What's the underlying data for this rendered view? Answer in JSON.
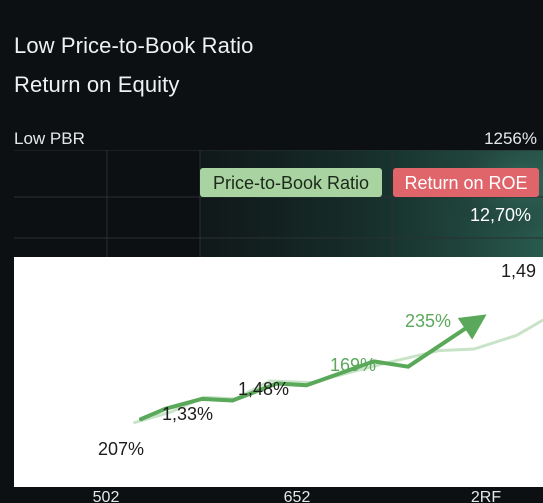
{
  "header": {
    "title_line1": "Low Price-to-Book Ratio",
    "title_line2": "Return on Equity",
    "left_label": "Low PBR",
    "right_label": "1256%"
  },
  "colors": {
    "background": "#0d1012",
    "green_line": "#5aa85a",
    "light_line": "#c9e3c9",
    "legend_green": "#a9d3a0",
    "legend_red": "#e0656a"
  },
  "chart_data": {
    "type": "line",
    "legend": [
      "Price-to-Book Ratio",
      "Return on ROE"
    ],
    "x_ticks": [
      "502",
      "652",
      "2RF"
    ],
    "series": [
      {
        "name": "Return on ROE",
        "values": [
          [
            0.24,
            0.295
          ],
          [
            0.286,
            0.34
          ],
          [
            0.355,
            0.383
          ],
          [
            0.413,
            0.376
          ],
          [
            0.497,
            0.45
          ],
          [
            0.553,
            0.442
          ],
          [
            0.68,
            0.546
          ],
          [
            0.745,
            0.523
          ],
          [
            0.884,
            0.736
          ]
        ]
      },
      {
        "name": "Price-to-Book Ratio",
        "values": [
          [
            0.228,
            0.28
          ],
          [
            0.298,
            0.327
          ],
          [
            0.359,
            0.39
          ],
          [
            0.418,
            0.383
          ],
          [
            0.484,
            0.461
          ],
          [
            0.563,
            0.454
          ],
          [
            0.696,
            0.535
          ],
          [
            0.803,
            0.593
          ],
          [
            0.87,
            0.6
          ],
          [
            0.95,
            0.659
          ],
          [
            1.0,
            0.726
          ]
        ]
      }
    ],
    "annotations": [
      "207%",
      "1,33%",
      "1,48%",
      "169%",
      "235%",
      "12,70%",
      "1,49"
    ]
  }
}
